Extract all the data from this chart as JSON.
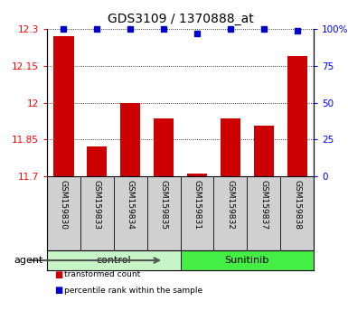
{
  "title": "GDS3109 / 1370888_at",
  "samples": [
    "GSM159830",
    "GSM159833",
    "GSM159834",
    "GSM159835",
    "GSM159831",
    "GSM159832",
    "GSM159837",
    "GSM159838"
  ],
  "bar_values": [
    12.27,
    11.82,
    12.0,
    11.935,
    11.71,
    11.935,
    11.905,
    12.19
  ],
  "percentile_values": [
    100,
    100,
    100,
    100,
    97,
    100,
    100,
    99
  ],
  "groups": [
    {
      "label": "control",
      "indices": [
        0,
        1,
        2,
        3
      ],
      "color": "#c8f5c8"
    },
    {
      "label": "Sunitinib",
      "indices": [
        4,
        5,
        6,
        7
      ],
      "color": "#44ee44"
    }
  ],
  "group_label": "agent",
  "ylim_left": [
    11.7,
    12.3
  ],
  "yticks_left": [
    11.7,
    11.85,
    12.0,
    12.15,
    12.3
  ],
  "ytick_labels_left": [
    "11.7",
    "11.85",
    "12",
    "12.15",
    "12.3"
  ],
  "ylim_right": [
    0,
    100
  ],
  "yticks_right": [
    0,
    25,
    50,
    75,
    100
  ],
  "ytick_labels_right": [
    "0",
    "25",
    "50",
    "75",
    "100%"
  ],
  "bar_color": "#cc0000",
  "dot_color": "#0000cc",
  "bar_width": 0.6,
  "bg_color_plot": "#ffffff",
  "bg_color_xlabel": "#d0d0d0",
  "legend_items": [
    {
      "color": "#cc0000",
      "label": "transformed count"
    },
    {
      "color": "#0000cc",
      "label": "percentile rank within the sample"
    }
  ]
}
